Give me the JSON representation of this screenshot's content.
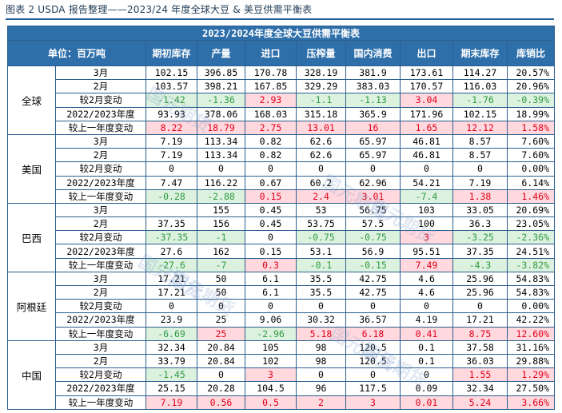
{
  "caption": "图表 2 USDA 报告整理——2023/24 年度全球大豆 & 美豆供需平衡表",
  "watermark": "国元期货",
  "table": {
    "title": "2023/2024年度全球大豆供需平衡表",
    "unit_label": "单位：百万吨",
    "headers": [
      "期初库存",
      "产量",
      "进口",
      "压榨量",
      "国内消费",
      "出口",
      "期末库存",
      "库销比"
    ],
    "regions": [
      {
        "name": "全球",
        "rows": [
          {
            "label": "3月",
            "values": [
              "102.15",
              "396.85",
              "170.78",
              "328.19",
              "381.9",
              "173.61",
              "114.27",
              "20.57%"
            ],
            "styles": [
              "",
              "",
              "",
              "",
              "",
              "",
              "",
              ""
            ]
          },
          {
            "label": "2月",
            "values": [
              "103.57",
              "398.21",
              "167.85",
              "329.29",
              "383.03",
              "170.57",
              "116.03",
              "20.96%"
            ],
            "styles": [
              "",
              "",
              "",
              "",
              "",
              "",
              "",
              ""
            ]
          },
          {
            "label": "较2月变动",
            "values": [
              "-1.42",
              "-1.36",
              "2.93",
              "-1.1",
              "-1.13",
              "3.04",
              "-1.76",
              "-0.39%"
            ],
            "styles": [
              "neg",
              "neg",
              "pos",
              "neg",
              "neg",
              "pos",
              "neg",
              "neg"
            ]
          },
          {
            "label": "2022/2023年度",
            "values": [
              "93.93",
              "378.06",
              "168.03",
              "315.18",
              "365.9",
              "171.96",
              "102.15",
              "18.99%"
            ],
            "styles": [
              "",
              "",
              "",
              "",
              "",
              "",
              "",
              ""
            ]
          },
          {
            "label": "较上一年度变动",
            "values": [
              "8.22",
              "18.79",
              "2.75",
              "13.01",
              "16",
              "1.65",
              "12.12",
              "1.58%"
            ],
            "styles": [
              "pos",
              "pos",
              "pos",
              "pos",
              "pos",
              "pos",
              "pos",
              "pos"
            ]
          }
        ]
      },
      {
        "name": "美国",
        "rows": [
          {
            "label": "3月",
            "values": [
              "7.19",
              "113.34",
              "0.82",
              "62.6",
              "65.97",
              "46.81",
              "8.57",
              "7.60%"
            ],
            "styles": [
              "",
              "",
              "",
              "",
              "",
              "",
              "",
              ""
            ]
          },
          {
            "label": "2月",
            "values": [
              "7.19",
              "113.34",
              "0.82",
              "62.6",
              "65.97",
              "46.81",
              "8.57",
              "7.60%"
            ],
            "styles": [
              "",
              "",
              "",
              "",
              "",
              "",
              "",
              ""
            ]
          },
          {
            "label": "较2月变动",
            "values": [
              "0",
              "0",
              "0",
              "0",
              "0",
              "0",
              "0",
              "0.00%"
            ],
            "styles": [
              "",
              "",
              "",
              "",
              "",
              "",
              "",
              ""
            ]
          },
          {
            "label": "2022/2023年度",
            "values": [
              "7.47",
              "116.22",
              "0.67",
              "60.2",
              "62.96",
              "54.21",
              "7.19",
              "6.14%"
            ],
            "styles": [
              "",
              "",
              "",
              "",
              "",
              "",
              "",
              ""
            ]
          },
          {
            "label": "较上一年度变动",
            "values": [
              "-0.28",
              "-2.88",
              "0.15",
              "2.4",
              "3.01",
              "-7.4",
              "1.38",
              "1.46%"
            ],
            "styles": [
              "neg",
              "neg",
              "pos",
              "pos",
              "pos",
              "neg",
              "pos",
              "pos"
            ]
          }
        ]
      },
      {
        "name": "巴西",
        "rows": [
          {
            "label": "3月",
            "values": [
              "",
              "155",
              "0.45",
              "53",
              "56.75",
              "103",
              "33.05",
              "20.69%"
            ],
            "styles": [
              "",
              "",
              "",
              "",
              "",
              "",
              "",
              ""
            ]
          },
          {
            "label": "2月",
            "values": [
              "37.35",
              "156",
              "0.45",
              "53.75",
              "57.5",
              "100",
              "36.3",
              "23.05%"
            ],
            "styles": [
              "",
              "",
              "",
              "",
              "",
              "",
              "",
              ""
            ]
          },
          {
            "label": "较2月变动",
            "values": [
              "-37.35",
              "-1",
              "0",
              "-0.75",
              "-0.75",
              "3",
              "-3.25",
              "-2.36%"
            ],
            "styles": [
              "neg",
              "neg",
              "",
              "neg",
              "neg",
              "pos",
              "neg",
              "neg"
            ]
          },
          {
            "label": "2022/2023年度",
            "values": [
              "27.6",
              "162",
              "0.15",
              "53.1",
              "56.9",
              "95.51",
              "37.35",
              "24.51%"
            ],
            "styles": [
              "",
              "",
              "",
              "",
              "",
              "",
              "",
              ""
            ]
          },
          {
            "label": "较上一年度变动",
            "values": [
              "-27.6",
              "-7",
              "0.3",
              "-0.1",
              "-0.15",
              "7.49",
              "-4.3",
              "-3.82%"
            ],
            "styles": [
              "neg",
              "neg",
              "pos",
              "neg",
              "neg",
              "pos",
              "neg",
              "neg"
            ]
          }
        ]
      },
      {
        "name": "阿根廷",
        "rows": [
          {
            "label": "3月",
            "values": [
              "17.21",
              "50",
              "6.1",
              "35.5",
              "42.75",
              "4.6",
              "25.96",
              "54.83%"
            ],
            "styles": [
              "",
              "",
              "",
              "",
              "",
              "",
              "",
              ""
            ]
          },
          {
            "label": "2月",
            "values": [
              "17.21",
              "50",
              "6.1",
              "35.5",
              "42.75",
              "4.6",
              "25.96",
              "54.83%"
            ],
            "styles": [
              "",
              "",
              "",
              "",
              "",
              "",
              "",
              ""
            ]
          },
          {
            "label": "较2月变动",
            "values": [
              "0",
              "0",
              "0",
              "0",
              "0",
              "0",
              "0",
              "0.00%"
            ],
            "styles": [
              "",
              "",
              "",
              "",
              "",
              "",
              "",
              ""
            ]
          },
          {
            "label": "2022/2023年度",
            "values": [
              "23.9",
              "25",
              "9.06",
              "30.32",
              "36.57",
              "4.19",
              "17.21",
              "42.22%"
            ],
            "styles": [
              "",
              "",
              "",
              "",
              "",
              "",
              "",
              ""
            ]
          },
          {
            "label": "较上一年度变动",
            "values": [
              "-6.69",
              "25",
              "-2.96",
              "5.18",
              "6.18",
              "0.41",
              "8.75",
              "12.60%"
            ],
            "styles": [
              "neg",
              "pos",
              "neg",
              "pos",
              "pos",
              "pos",
              "pos",
              "pos"
            ]
          }
        ]
      },
      {
        "name": "中国",
        "rows": [
          {
            "label": "3月",
            "values": [
              "32.34",
              "20.84",
              "105",
              "98",
              "120.5",
              "0.1",
              "37.58",
              "31.16%"
            ],
            "styles": [
              "",
              "",
              "",
              "",
              "",
              "",
              "",
              ""
            ]
          },
          {
            "label": "2月",
            "values": [
              "33.79",
              "20.84",
              "102",
              "98",
              "120.5",
              "0.1",
              "36.03",
              "29.88%"
            ],
            "styles": [
              "",
              "",
              "",
              "",
              "",
              "",
              "",
              ""
            ]
          },
          {
            "label": "较2月变动",
            "values": [
              "-1.45",
              "0",
              "3",
              "0",
              "0",
              "0",
              "1.55",
              "1.29%"
            ],
            "styles": [
              "neg",
              "",
              "pos",
              "",
              "",
              "",
              "pos",
              "pos"
            ]
          },
          {
            "label": "2022/2023年度",
            "values": [
              "25.15",
              "20.28",
              "104.5",
              "96",
              "117.5",
              "0.09",
              "32.34",
              "27.50%"
            ],
            "styles": [
              "",
              "",
              "",
              "",
              "",
              "",
              "",
              ""
            ]
          },
          {
            "label": "较上一年度变动",
            "values": [
              "7.19",
              "0.56",
              "0.5",
              "2",
              "3",
              "0.01",
              "5.24",
              "3.66%"
            ],
            "styles": [
              "pos",
              "pos",
              "pos",
              "pos",
              "pos",
              "pos",
              "pos",
              "pos"
            ]
          }
        ]
      }
    ]
  }
}
